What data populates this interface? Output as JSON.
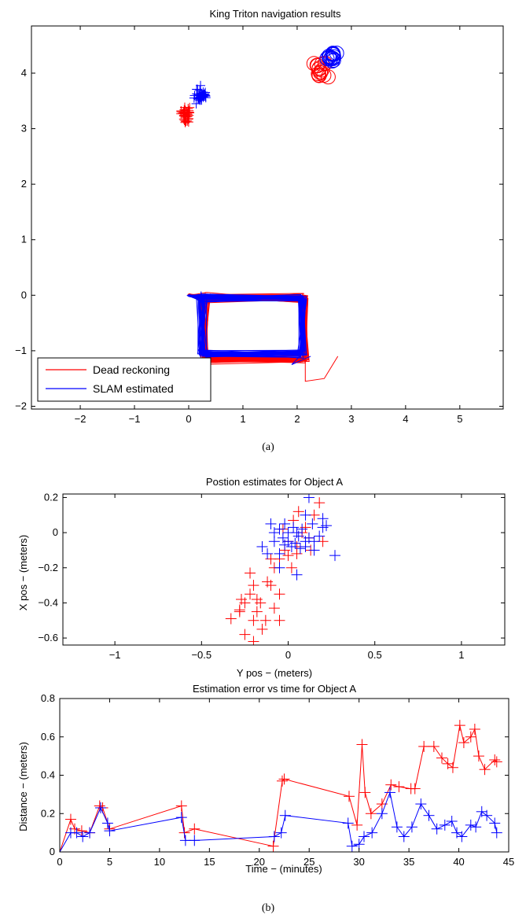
{
  "colors": {
    "dead_reckoning": "#ff0000",
    "slam": "#0000ff"
  },
  "captions": {
    "a": "(a)",
    "b": "(b)"
  },
  "chart_data": [
    {
      "type": "line",
      "title": "King Triton navigation results",
      "xlabel": "",
      "ylabel": "",
      "xlim": [
        -2.9,
        5.8
      ],
      "ylim": [
        -2.05,
        4.85
      ],
      "xticks": [
        -2,
        -1,
        0,
        1,
        2,
        3,
        4,
        5
      ],
      "yticks": [
        -2,
        -1,
        0,
        1,
        2,
        3,
        4
      ],
      "legend": {
        "position": "bottom-left",
        "entries": [
          "Dead reckoning",
          "SLAM estimated"
        ]
      },
      "series": [
        {
          "name": "Dead reckoning",
          "color": "#ff0000",
          "kind": "trajectory",
          "loop_corners": [
            [
              0.3,
              -0.05
            ],
            [
              2.15,
              -0.05
            ],
            [
              2.15,
              -1.15
            ],
            [
              0.3,
              -1.15
            ]
          ],
          "tail": [
            [
              2.15,
              -1.55
            ],
            [
              2.5,
              -1.5
            ],
            [
              2.75,
              -1.1
            ]
          ]
        },
        {
          "name": "SLAM estimated",
          "color": "#0000ff",
          "kind": "trajectory",
          "loop_corners": [
            [
              0.25,
              -0.05
            ],
            [
              2.1,
              -0.05
            ],
            [
              2.1,
              -1.05
            ],
            [
              0.25,
              -1.05
            ]
          ],
          "tail": [
            [
              1.9,
              -1.25
            ],
            [
              2.25,
              -1.1
            ]
          ]
        },
        {
          "name": "Dead reckoning",
          "color": "#ff0000",
          "kind": "cross-markers",
          "center": [
            -0.05,
            3.25
          ],
          "spread": [
            0.15,
            0.2
          ]
        },
        {
          "name": "SLAM estimated",
          "color": "#0000ff",
          "kind": "cross-markers",
          "center": [
            0.22,
            3.6
          ],
          "spread": [
            0.15,
            0.2
          ]
        },
        {
          "name": "Dead reckoning",
          "color": "#ff0000",
          "kind": "circle-markers",
          "center": [
            2.45,
            4.05
          ],
          "spread": [
            0.2,
            0.25
          ]
        },
        {
          "name": "SLAM estimated",
          "color": "#0000ff",
          "kind": "circle-markers",
          "center": [
            2.65,
            4.3
          ],
          "spread": [
            0.15,
            0.15
          ]
        }
      ]
    },
    {
      "type": "scatter",
      "title": "Postion estimates for Object A",
      "xlabel": "Y pos − (meters)",
      "ylabel": "X pos − (meters)",
      "xlim": [
        -1.3,
        1.25
      ],
      "ylim": [
        -0.64,
        0.22
      ],
      "xticks": [
        -1,
        -0.5,
        0,
        0.5,
        1
      ],
      "yticks": [
        -0.6,
        -0.4,
        -0.2,
        0,
        0.2
      ],
      "series": [
        {
          "name": "Dead reckoning",
          "color": "#ff0000",
          "points": [
            [
              -0.33,
              -0.49
            ],
            [
              -0.28,
              -0.44
            ],
            [
              -0.25,
              -0.58
            ],
            [
              -0.2,
              -0.3
            ],
            [
              -0.22,
              -0.35
            ],
            [
              -0.25,
              -0.4
            ],
            [
              -0.18,
              -0.45
            ],
            [
              -0.2,
              -0.5
            ],
            [
              -0.15,
              -0.55
            ],
            [
              -0.27,
              -0.38
            ],
            [
              -0.2,
              -0.62
            ],
            [
              -0.18,
              -0.38
            ],
            [
              -0.1,
              -0.3
            ],
            [
              -0.12,
              -0.28
            ],
            [
              -0.08,
              -0.43
            ],
            [
              -0.05,
              -0.5
            ],
            [
              -0.13,
              -0.5
            ],
            [
              -0.08,
              -0.2
            ],
            [
              -0.05,
              -0.15
            ],
            [
              0.0,
              -0.13
            ],
            [
              -0.02,
              -0.1
            ],
            [
              0.05,
              -0.08
            ],
            [
              0.08,
              0.0
            ],
            [
              0.1,
              0.03
            ],
            [
              0.18,
              0.17
            ],
            [
              0.15,
              0.1
            ],
            [
              0.03,
              0.07
            ],
            [
              0.0,
              -0.05
            ],
            [
              -0.22,
              -0.23
            ],
            [
              -0.16,
              -0.4
            ],
            [
              -0.1,
              -0.15
            ],
            [
              0.05,
              -0.12
            ],
            [
              -0.03,
              0.02
            ],
            [
              0.12,
              -0.03
            ],
            [
              0.06,
              0.12
            ],
            [
              0.2,
              -0.05
            ],
            [
              -0.28,
              -0.45
            ],
            [
              -0.05,
              -0.35
            ],
            [
              0.02,
              -0.2
            ],
            [
              0.13,
              -0.1
            ]
          ]
        },
        {
          "name": "SLAM estimated",
          "color": "#0000ff",
          "points": [
            [
              0.12,
              0.2
            ],
            [
              0.2,
              0.08
            ],
            [
              0.27,
              -0.13
            ],
            [
              0.2,
              0.03
            ],
            [
              0.05,
              -0.24
            ],
            [
              0.1,
              -0.05
            ],
            [
              0.15,
              -0.1
            ],
            [
              -0.05,
              -0.12
            ],
            [
              -0.12,
              -0.12
            ],
            [
              -0.05,
              0.02
            ],
            [
              -0.1,
              0.05
            ],
            [
              -0.08,
              -0.05
            ],
            [
              0.0,
              -0.05
            ],
            [
              0.02,
              -0.08
            ],
            [
              0.05,
              0.0
            ],
            [
              -0.02,
              0.05
            ],
            [
              0.08,
              0.02
            ],
            [
              0.12,
              -0.03
            ],
            [
              0.18,
              -0.02
            ],
            [
              -0.15,
              -0.08
            ],
            [
              0.1,
              0.1
            ],
            [
              0.22,
              0.04
            ],
            [
              -0.05,
              -0.2
            ],
            [
              0.0,
              0.0
            ],
            [
              -0.03,
              -0.03
            ],
            [
              0.04,
              -0.06
            ],
            [
              0.07,
              -0.09
            ],
            [
              0.15,
              -0.05
            ],
            [
              -0.08,
              0.0
            ],
            [
              0.03,
              0.03
            ],
            [
              0.06,
              -0.02
            ],
            [
              -0.02,
              -0.07
            ],
            [
              0.1,
              -0.08
            ],
            [
              0.14,
              0.05
            ]
          ]
        }
      ]
    },
    {
      "type": "line",
      "title": "Estimation error vs time for Object A",
      "xlabel": "Time − (minutes)",
      "ylabel": "Distance − (meters)",
      "xlim": [
        0,
        45
      ],
      "ylim": [
        0,
        0.8
      ],
      "xticks": [
        0,
        5,
        10,
        15,
        20,
        25,
        30,
        35,
        40,
        45
      ],
      "yticks": [
        0,
        0.2,
        0.4,
        0.6,
        0.8
      ],
      "series": [
        {
          "name": "Dead reckoning",
          "color": "#ff0000",
          "points": [
            [
              0,
              0
            ],
            [
              1.1,
              0.17
            ],
            [
              1.5,
              0.12
            ],
            [
              2.2,
              0.11
            ],
            [
              3,
              0.1
            ],
            [
              4,
              0.24
            ],
            [
              4.3,
              0.23
            ],
            [
              5,
              0.12
            ],
            [
              12.2,
              0.24
            ],
            [
              12.5,
              0.1
            ],
            [
              13.5,
              0.12
            ],
            [
              21.4,
              0.03
            ],
            [
              22.3,
              0.37
            ],
            [
              22.5,
              0.38
            ],
            [
              29,
              0.29
            ],
            [
              29.8,
              0.14
            ],
            [
              30.3,
              0.56
            ],
            [
              30.6,
              0.31
            ],
            [
              31.2,
              0.2
            ],
            [
              32.3,
              0.25
            ],
            [
              33.2,
              0.35
            ],
            [
              34,
              0.34
            ],
            [
              35.2,
              0.33
            ],
            [
              35.6,
              0.33
            ],
            [
              36.5,
              0.55
            ],
            [
              37.5,
              0.55
            ],
            [
              38.3,
              0.49
            ],
            [
              38.9,
              0.46
            ],
            [
              39.4,
              0.44
            ],
            [
              40.1,
              0.66
            ],
            [
              40.5,
              0.57
            ],
            [
              41.2,
              0.6
            ],
            [
              41.6,
              0.64
            ],
            [
              42,
              0.5
            ],
            [
              42.6,
              0.43
            ],
            [
              43.6,
              0.48
            ],
            [
              43.8,
              0.47
            ]
          ]
        },
        {
          "name": "SLAM estimated",
          "color": "#0000ff",
          "points": [
            [
              0,
              0
            ],
            [
              1.1,
              0.1
            ],
            [
              1.7,
              0.1
            ],
            [
              2.3,
              0.08
            ],
            [
              3,
              0.1
            ],
            [
              4.1,
              0.23
            ],
            [
              4.8,
              0.15
            ],
            [
              5,
              0.11
            ],
            [
              12.2,
              0.18
            ],
            [
              12.6,
              0.06
            ],
            [
              13.5,
              0.06
            ],
            [
              21.5,
              0.08
            ],
            [
              22.2,
              0.1
            ],
            [
              22.6,
              0.19
            ],
            [
              28.9,
              0.15
            ],
            [
              29.3,
              0.03
            ],
            [
              30,
              0.04
            ],
            [
              30.5,
              0.08
            ],
            [
              31.3,
              0.1
            ],
            [
              32.3,
              0.2
            ],
            [
              33.1,
              0.31
            ],
            [
              33.8,
              0.13
            ],
            [
              34.5,
              0.08
            ],
            [
              35.3,
              0.13
            ],
            [
              36.2,
              0.25
            ],
            [
              37,
              0.19
            ],
            [
              37.8,
              0.12
            ],
            [
              38.6,
              0.14
            ],
            [
              39.3,
              0.16
            ],
            [
              39.8,
              0.1
            ],
            [
              40.3,
              0.08
            ],
            [
              41.2,
              0.14
            ],
            [
              41.7,
              0.13
            ],
            [
              42.3,
              0.21
            ],
            [
              42.8,
              0.19
            ],
            [
              43.6,
              0.15
            ],
            [
              43.8,
              0.1
            ]
          ]
        }
      ]
    }
  ]
}
